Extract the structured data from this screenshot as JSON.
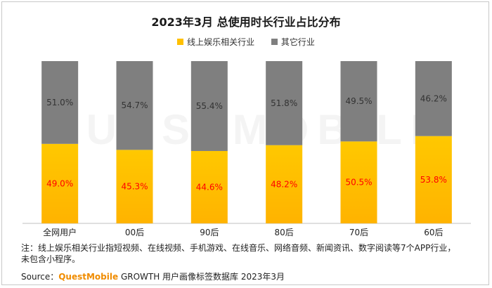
{
  "chart_data": {
    "type": "bar",
    "stacked": true,
    "percent": true,
    "title": "2023年3月 总使用时长行业占比分布",
    "categories": [
      "全网用户",
      "00后",
      "90后",
      "80后",
      "70后",
      "60后"
    ],
    "series": [
      {
        "name": "线上娱乐相关行业",
        "color": "#ffc000",
        "values": [
          49.0,
          45.3,
          44.6,
          48.2,
          50.5,
          53.8
        ],
        "labels": [
          "49.0%",
          "45.3%",
          "44.6%",
          "48.2%",
          "50.5%",
          "53.8%"
        ]
      },
      {
        "name": "其它行业",
        "color": "#7f7f7f",
        "values": [
          51.0,
          54.7,
          55.4,
          51.8,
          49.5,
          46.2
        ],
        "labels": [
          "51.0%",
          "54.7%",
          "55.4%",
          "51.8%",
          "49.5%",
          "46.2%"
        ]
      }
    ],
    "ylim": [
      0,
      100
    ],
    "grid": false,
    "legend_position": "top-center",
    "label_colors": {
      "bottom": "#ff0000",
      "top": "#333333"
    }
  },
  "watermark": "QUESTMOBILE",
  "note": "注：线上娱乐相关行业指短视频、在线视频、手机游戏、在线音乐、网络音频、新闻资讯、数字阅读等7个APP行业，未包含小程序。",
  "source": {
    "prefix": "Source：",
    "brand": "QuestMobile",
    "suffix": " GROWTH 用户画像标签数据库 2023年3月"
  }
}
